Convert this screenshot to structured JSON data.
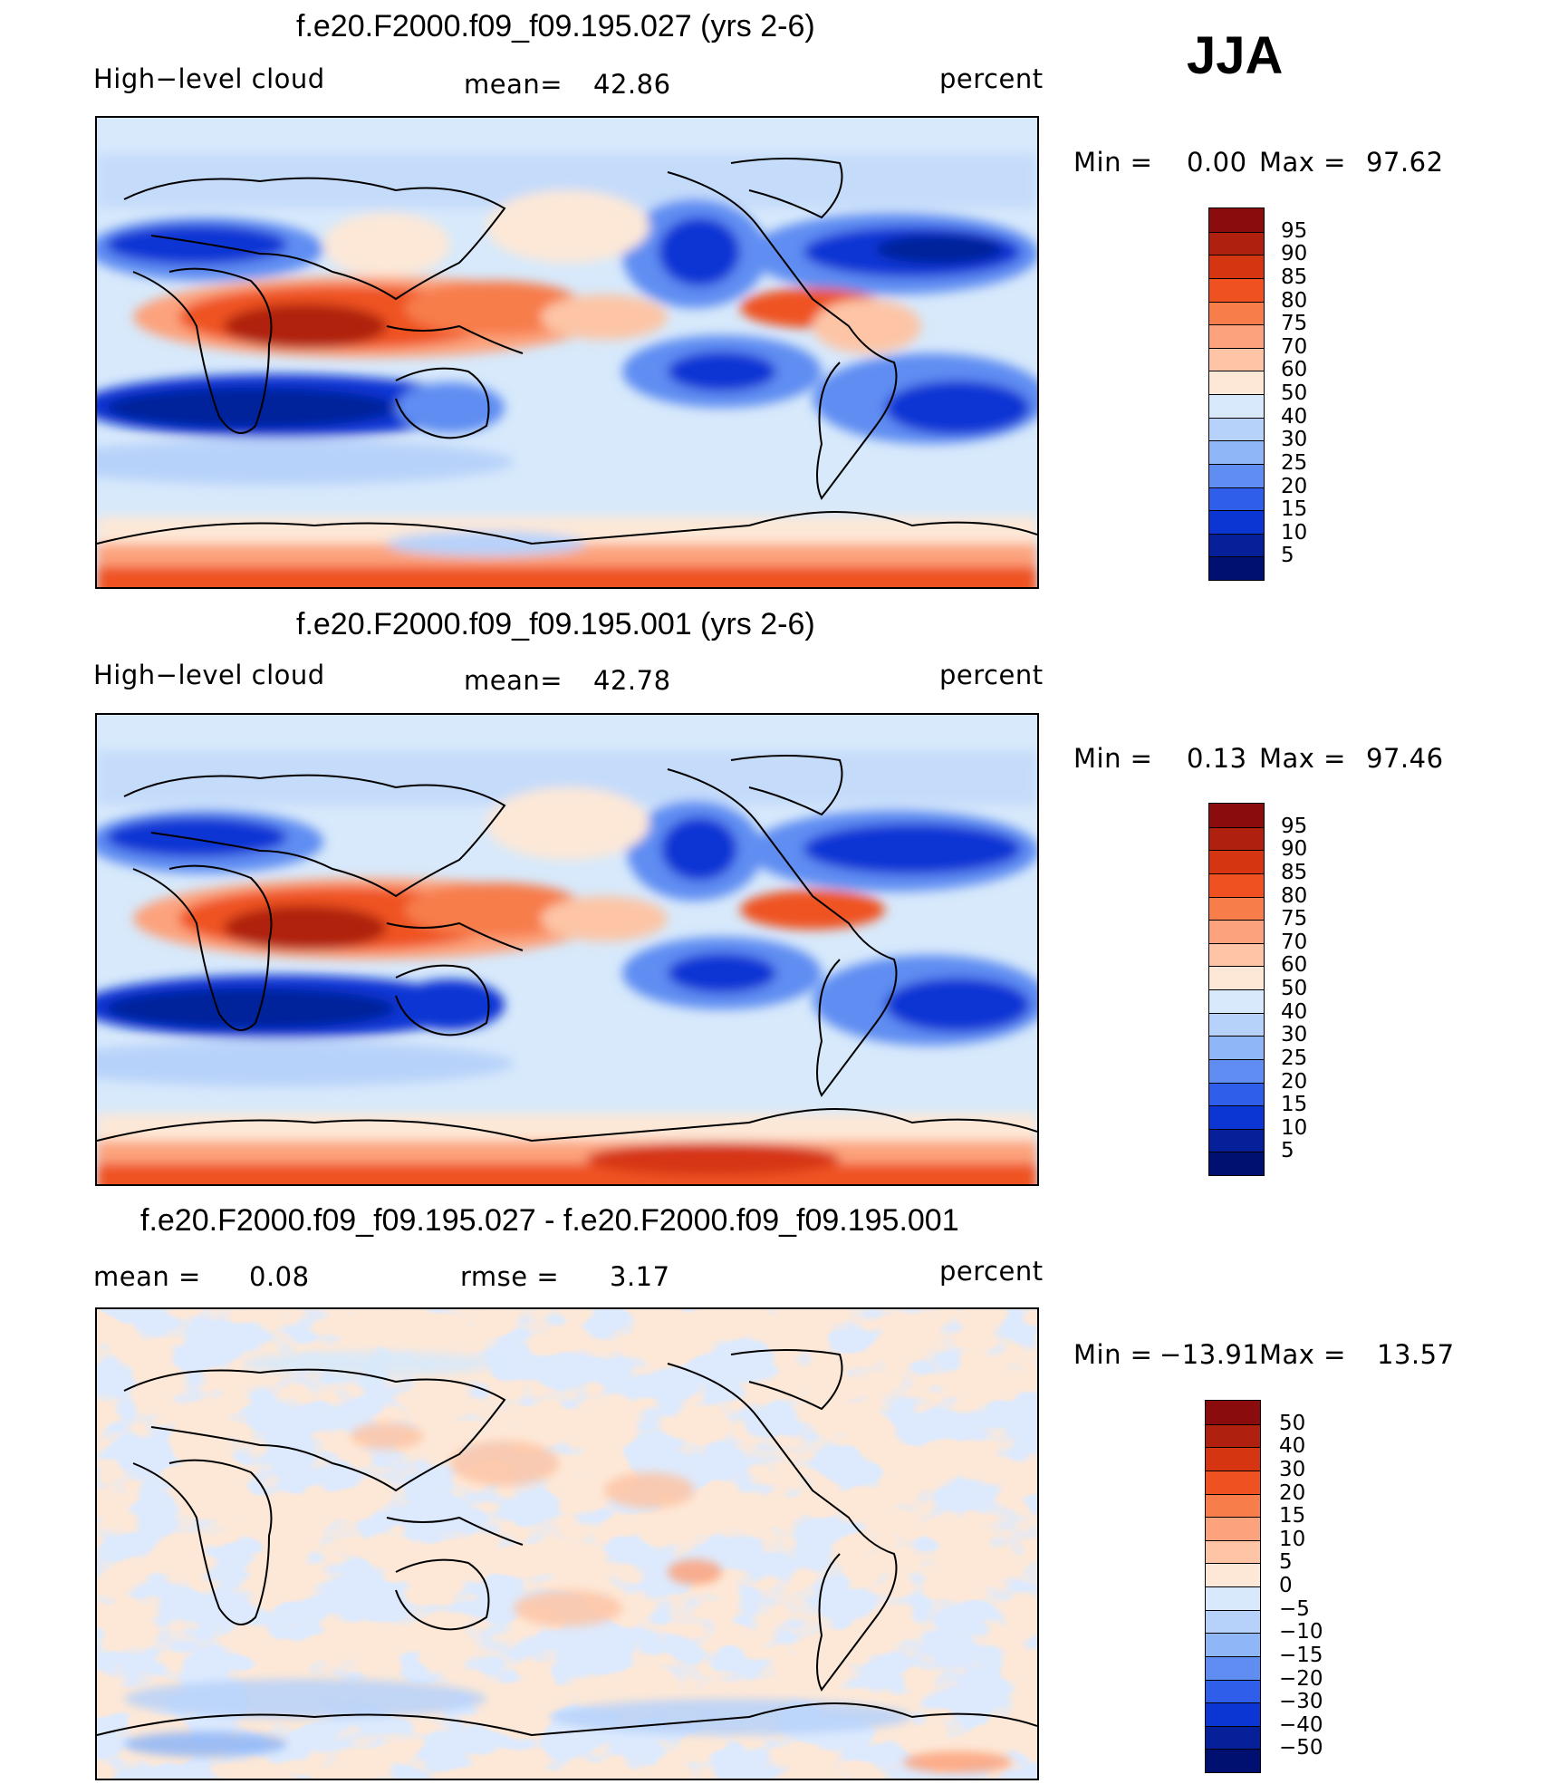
{
  "season": "JJA",
  "panels": [
    {
      "title": "f.e20.F2000.f09_f09.195.027 (yrs 2-6)",
      "left_label": "High−level cloud",
      "center_label": "mean=",
      "center_value": "42.86",
      "units": "percent",
      "min_label": "Min  =",
      "min_value": "0.00",
      "max_label": "Max  =",
      "max_value": "97.62"
    },
    {
      "title": "f.e20.F2000.f09_f09.195.001 (yrs 2-6)",
      "left_label": "High−level cloud",
      "center_label": "mean=",
      "center_value": "42.78",
      "units": "percent",
      "min_label": "Min  =",
      "min_value": "0.13",
      "max_label": "Max  =",
      "max_value": "97.46"
    },
    {
      "title": "f.e20.F2000.f09_f09.195.027 - f.e20.F2000.f09_f09.195.001",
      "left_label": "mean  =",
      "left_value": "0.08",
      "center_label": "rmse  =",
      "center_value": "3.17",
      "units": "percent",
      "min_label": "Min  =",
      "min_value": "−13.91",
      "max_label": "Max  =",
      "max_value": "13.57"
    }
  ],
  "colorbars": {
    "absolute": {
      "labels": [
        "95",
        "90",
        "85",
        "80",
        "75",
        "70",
        "60",
        "50",
        "40",
        "30",
        "25",
        "20",
        "15",
        "10",
        "5"
      ],
      "colors": [
        "#8a0c0c",
        "#b0200f",
        "#d63512",
        "#ef5220",
        "#f77d4b",
        "#fca37d",
        "#fdc5a6",
        "#fde8d7",
        "#d7e9fb",
        "#b7d2fa",
        "#8fb6f7",
        "#5f8df2",
        "#2e5eea",
        "#0c36d4",
        "#06209a",
        "#001070"
      ]
    },
    "difference": {
      "labels": [
        "50",
        "40",
        "30",
        "20",
        "15",
        "10",
        "5",
        "0",
        "−5",
        "−10",
        "−15",
        "−20",
        "−30",
        "−40",
        "−50"
      ],
      "colors": [
        "#8a0c0c",
        "#b0200f",
        "#d63512",
        "#ef5220",
        "#f77d4b",
        "#fca37d",
        "#fdc5a6",
        "#fde8d7",
        "#d7e9fb",
        "#b7d2fa",
        "#8fb6f7",
        "#5f8df2",
        "#2e5eea",
        "#0c36d4",
        "#06209a",
        "#001070"
      ]
    }
  }
}
